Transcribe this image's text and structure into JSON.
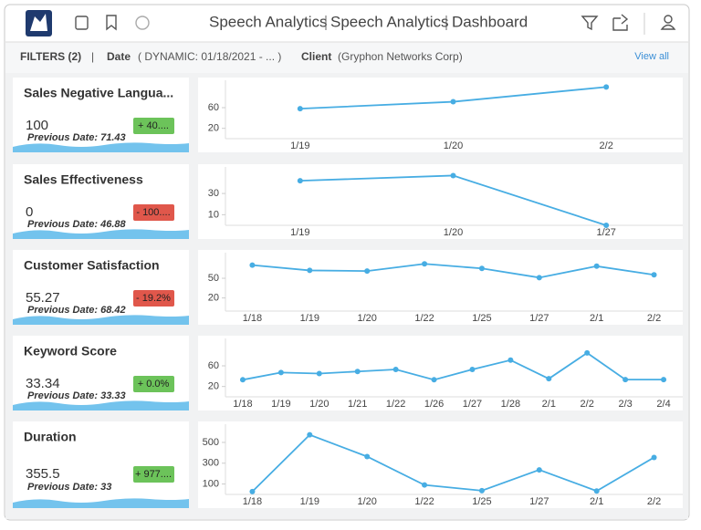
{
  "header": {
    "title": [
      "Speech Analytics",
      "Speech Analytics",
      "Dashboard"
    ]
  },
  "filters": {
    "label": "FILTERS (2)",
    "separator": "|",
    "date_label": "Date",
    "date_value": "( DYNAMIC: 01/18/2021 - ... )",
    "client_label": "Client",
    "client_value": "(Gryphon Networks Corp)",
    "view_all": "View all"
  },
  "line_color": "#47ade3",
  "metrics": [
    {
      "name": "Sales Negative Langua...",
      "value": "100",
      "previous": "Previous Date: 71.43",
      "change": "+ 40....",
      "change_color": "#6cc35a",
      "chart": {
        "categories": [
          "1/19",
          "1/20",
          "2/2"
        ],
        "values": [
          58,
          71.43,
          100
        ],
        "ylim": [
          0,
          113
        ],
        "yticks": [
          20,
          60
        ]
      }
    },
    {
      "name": "Sales Effectiveness",
      "value": "0",
      "previous": "Previous Date: 46.88",
      "change": "- 100....",
      "change_color": "#e0574b",
      "chart": {
        "categories": [
          "1/19",
          "1/20",
          "1/27"
        ],
        "values": [
          42,
          46.88,
          0
        ],
        "ylim": [
          0,
          55
        ],
        "yticks": [
          10,
          30
        ]
      }
    },
    {
      "name": "Customer Satisfaction",
      "value": "55.27",
      "previous": "Previous Date: 68.42",
      "change": "- 19.2%",
      "change_color": "#e0574b",
      "chart": {
        "categories": [
          "1/18",
          "1/19",
          "1/20",
          "1/22",
          "1/25",
          "1/27",
          "2/1",
          "2/2"
        ],
        "values": [
          70,
          62,
          61,
          72,
          65,
          51,
          68.42,
          55.27
        ],
        "ylim": [
          0,
          89
        ],
        "yticks": [
          20,
          50
        ]
      }
    },
    {
      "name": "Keyword Score",
      "value": "33.34",
      "previous": "Previous Date: 33.33",
      "change": "+ 0.0%",
      "change_color": "#6cc35a",
      "chart": {
        "categories": [
          "1/18",
          "1/19",
          "1/20",
          "1/21",
          "1/22",
          "1/26",
          "1/27",
          "1/28",
          "2/1",
          "2/2",
          "2/3",
          "2/4"
        ],
        "values": [
          33,
          47,
          45,
          49,
          53,
          33,
          53,
          71,
          35,
          85,
          33.33,
          33.34
        ],
        "ylim": [
          0,
          113
        ],
        "yticks": [
          20,
          60
        ]
      }
    },
    {
      "name": "Duration",
      "value": "355.5",
      "previous": "Previous Date: 33",
      "change": "+ 977....",
      "change_color": "#6cc35a",
      "chart": {
        "categories": [
          "1/18",
          "1/19",
          "1/20",
          "1/22",
          "1/25",
          "1/27",
          "2/1",
          "2/2"
        ],
        "values": [
          27,
          573,
          364,
          91,
          36,
          236,
          33,
          355.5
        ],
        "ylim": [
          0,
          675
        ],
        "yticks": [
          100,
          300,
          500
        ]
      }
    }
  ]
}
